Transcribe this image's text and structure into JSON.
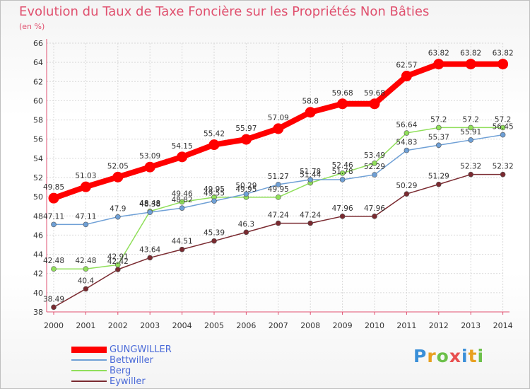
{
  "chart_data": {
    "type": "line",
    "title": "Evolution du Taux de Taxe Foncière sur les Propriétés Non Bâties",
    "ylabel": "(en %)",
    "xlabel": "",
    "x": [
      "2000",
      "2001",
      "2002",
      "2003",
      "2004",
      "2005",
      "2006",
      "2007",
      "2008",
      "2009",
      "2010",
      "2011",
      "2012",
      "2013",
      "2014"
    ],
    "ylim": [
      38,
      66
    ],
    "yticks": [
      "38",
      "40",
      "42",
      "44",
      "46",
      "48",
      "50",
      "52",
      "54",
      "56",
      "58",
      "60",
      "62",
      "64",
      "66"
    ],
    "series": [
      {
        "name": "GUNGWILLER",
        "color": "#ff0000",
        "values": [
          49.85,
          51.03,
          52.05,
          53.09,
          54.15,
          55.42,
          55.97,
          57.09,
          58.8,
          59.68,
          59.68,
          62.57,
          63.82,
          63.82,
          63.82
        ],
        "labels": [
          "49.85",
          "51.03",
          "52.05",
          "53.09",
          "54.15",
          "55.42",
          "55.97",
          "57.09",
          "58.8",
          "59.68",
          "59.68",
          "62.57",
          "63.82",
          "63.82",
          "63.82"
        ]
      },
      {
        "name": "Bettwiller",
        "color": "#6fa0d6",
        "values": [
          47.11,
          47.11,
          47.9,
          48.38,
          48.82,
          49.55,
          50.29,
          51.27,
          51.78,
          51.78,
          52.29,
          54.83,
          55.37,
          55.91,
          56.45
        ],
        "labels": [
          "47.11",
          "47.11",
          "47.9",
          "48.38",
          "48.82",
          "49.55",
          "50.29",
          "51.27",
          "51.78",
          "51.78",
          "52.29",
          "54.83",
          "55.37",
          "55.91",
          "56.45"
        ]
      },
      {
        "name": "Berg",
        "color": "#90df5a",
        "values": [
          42.48,
          42.48,
          42.91,
          48.48,
          49.46,
          49.95,
          49.95,
          49.95,
          51.44,
          52.46,
          53.49,
          56.64,
          57.2,
          57.2,
          57.2
        ],
        "labels": [
          "42.48",
          "42.48",
          "42.91",
          "48.48",
          "49.46",
          "49.95",
          "49.95",
          "49.95",
          "51.44",
          "52.46",
          "53.49",
          "56.64",
          "57.2",
          "57.2",
          "57.2"
        ]
      },
      {
        "name": "Eywiller",
        "color": "#7a2a30",
        "values": [
          38.49,
          40.4,
          42.42,
          43.64,
          44.51,
          45.39,
          46.3,
          47.24,
          47.24,
          47.96,
          47.96,
          50.29,
          51.29,
          52.32,
          52.32
        ],
        "labels": [
          "38.49",
          "40.4",
          "42.42",
          "43.64",
          "44.51",
          "45.39",
          "46.3",
          "47.24",
          "47.24",
          "47.96",
          "47.96",
          "50.29",
          "51.29",
          "52.32",
          "52.32"
        ]
      }
    ]
  },
  "brand": {
    "letters": [
      "P",
      "r",
      "o",
      "x",
      "i",
      "t",
      "i"
    ],
    "colors": [
      "#3a8fd8",
      "#e8a020",
      "#6cc04a",
      "#e85050",
      "#3a8fd8",
      "#e8a020",
      "#6cc04a"
    ]
  }
}
